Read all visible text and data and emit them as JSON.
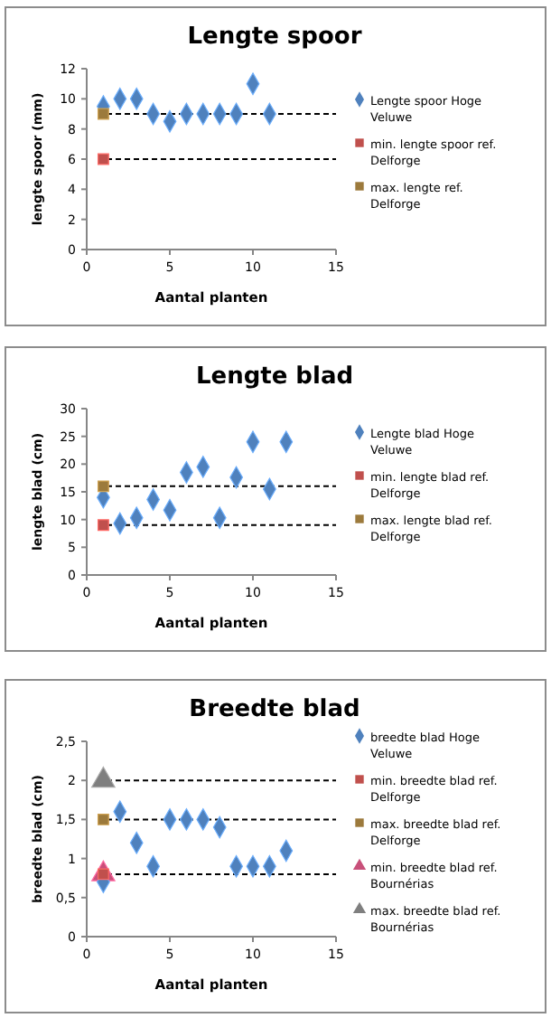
{
  "chart_data": [
    {
      "type": "scatter",
      "title": "Lengte spoor",
      "xlabel": "Aantal planten",
      "ylabel": "lengte spoor (mm)",
      "xlim": [
        0,
        15
      ],
      "xticks": [
        0,
        5,
        10,
        15
      ],
      "ylim": [
        0,
        12
      ],
      "yticks": [
        0,
        2,
        4,
        6,
        8,
        10,
        12
      ],
      "legend": "right",
      "grid": false,
      "series": [
        {
          "name": "Lengte spoor Hoge Veluwe",
          "color": "#4f81bd",
          "marker": "diamond",
          "x": [
            1,
            2,
            3,
            4,
            5,
            6,
            7,
            8,
            9,
            10,
            11
          ],
          "values": [
            9.5,
            10,
            10,
            9,
            8.5,
            9,
            9,
            9,
            9,
            11,
            9
          ]
        },
        {
          "name": "min. lengte spoor ref. Delforge",
          "color": "#c0504d",
          "marker": "square",
          "x": [
            1
          ],
          "values": [
            6
          ]
        },
        {
          "name": "max. lengte ref. Delforge",
          "color": "#9c7a3c",
          "marker": "square",
          "x": [
            1
          ],
          "values": [
            9
          ]
        }
      ],
      "ref_lines": [
        {
          "axis": "y",
          "value": 9,
          "line_style": "dashed",
          "color": "#000000"
        },
        {
          "axis": "y",
          "value": 6,
          "line_style": "dashed",
          "color": "#000000"
        }
      ]
    },
    {
      "type": "scatter",
      "title": "Lengte blad",
      "xlabel": "Aantal planten",
      "ylabel": "lengte blad (cm)",
      "xlim": [
        0,
        15
      ],
      "xticks": [
        0,
        5,
        10,
        15
      ],
      "ylim": [
        0,
        30
      ],
      "yticks": [
        0,
        5,
        10,
        15,
        20,
        25,
        30
      ],
      "legend": "right",
      "grid": false,
      "series": [
        {
          "name": "Lengte blad Hoge Veluwe",
          "color": "#4f81bd",
          "marker": "diamond",
          "x": [
            1,
            2,
            3,
            4,
            5,
            6,
            7,
            8,
            9,
            10,
            11,
            12
          ],
          "values": [
            14,
            9.3,
            10.3,
            13.6,
            11.7,
            18.5,
            19.5,
            10.3,
            17.6,
            24,
            15.5,
            24
          ]
        },
        {
          "name": "min. lengte blad ref. Delforge",
          "color": "#c0504d",
          "marker": "square",
          "x": [
            1
          ],
          "values": [
            9
          ]
        },
        {
          "name": "max. lengte blad ref. Delforge",
          "color": "#9c7a3c",
          "marker": "square",
          "x": [
            1
          ],
          "values": [
            16
          ]
        }
      ],
      "ref_lines": [
        {
          "axis": "y",
          "value": 16,
          "line_style": "dashed",
          "color": "#000000"
        },
        {
          "axis": "y",
          "value": 9,
          "line_style": "dashed",
          "color": "#000000"
        }
      ]
    },
    {
      "type": "scatter",
      "title": "Breedte blad",
      "xlabel": "Aantal planten",
      "ylabel": "breedte blad (cm)",
      "xlim": [
        0,
        15
      ],
      "xticks": [
        0,
        5,
        10,
        15
      ],
      "ylim": [
        0,
        2.5
      ],
      "yticks": [
        0,
        {
          "value": 0.5,
          "label": "0,5"
        },
        1,
        {
          "value": 1.5,
          "label": "1,5"
        },
        2,
        {
          "value": 2.5,
          "label": "2,5"
        }
      ],
      "legend": "right",
      "grid": false,
      "series": [
        {
          "name": "breedte blad Hoge Veluwe",
          "color": "#4f81bd",
          "marker": "diamond",
          "x": [
            1,
            2,
            3,
            4,
            5,
            6,
            7,
            8,
            9,
            10,
            11,
            12
          ],
          "values": [
            0.7,
            1.6,
            1.2,
            0.9,
            1.5,
            1.5,
            1.5,
            1.4,
            0.9,
            0.9,
            0.9,
            1.1
          ]
        },
        {
          "name": "min. breedte blad ref. Delforge",
          "color": "#c0504d",
          "marker": "square",
          "x": [
            1
          ],
          "values": [
            0.8
          ]
        },
        {
          "name": "max. breedte blad ref. Delforge",
          "color": "#9c7a3c",
          "marker": "square",
          "x": [
            1
          ],
          "values": [
            1.5
          ]
        },
        {
          "name": "min. breedte blad ref. Bournérias",
          "color": "#c8507a",
          "marker": "triangle",
          "x": [
            1
          ],
          "values": [
            0.8
          ]
        },
        {
          "name": "max. breedte blad ref. Bournérias",
          "color": "#7f7f7f",
          "marker": "triangle",
          "x": [
            1
          ],
          "values": [
            2
          ]
        }
      ],
      "ref_lines": [
        {
          "axis": "y",
          "value": 2,
          "line_style": "dashed",
          "color": "#000000"
        },
        {
          "axis": "y",
          "value": 1.5,
          "line_style": "dashed",
          "color": "#000000"
        },
        {
          "axis": "y",
          "value": 0.8,
          "line_style": "dashed",
          "color": "#000000"
        }
      ]
    }
  ]
}
